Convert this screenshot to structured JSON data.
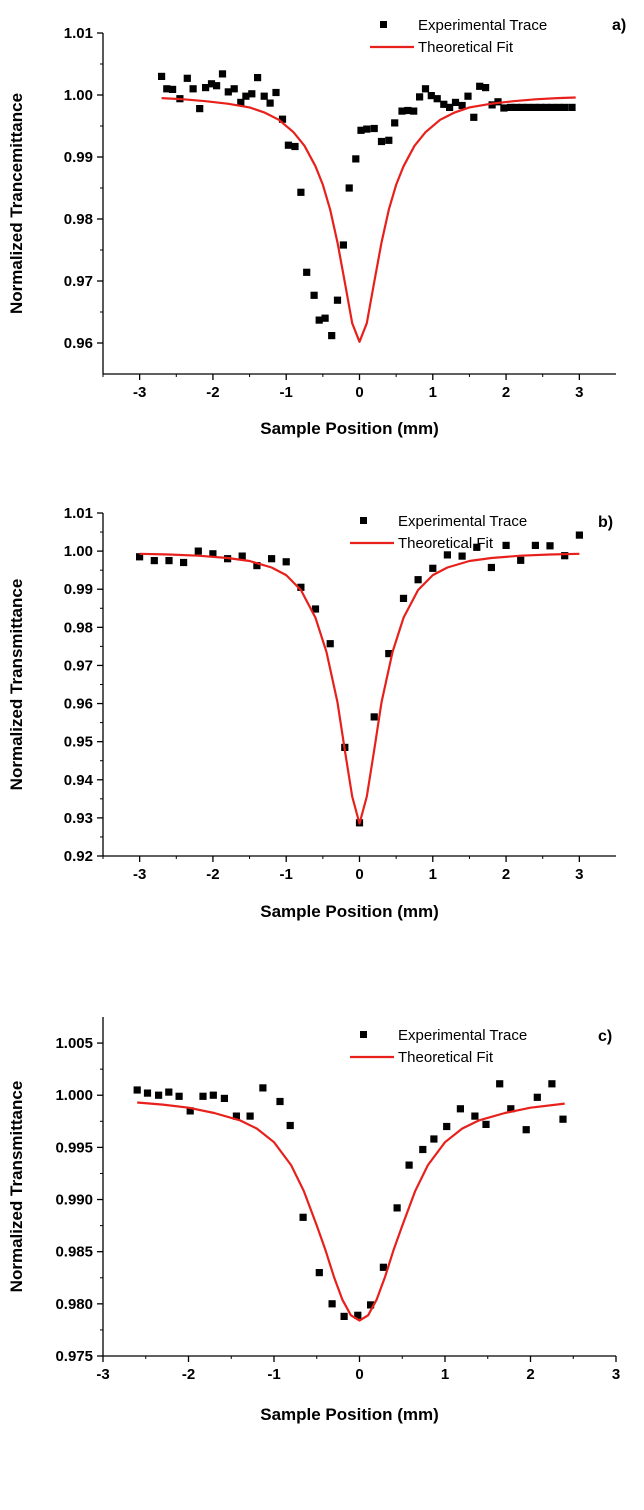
{
  "chart_data": [
    {
      "type": "scatter",
      "panel_label": "a)",
      "xlabel": "Sample Position (mm)",
      "ylabel": "Normalized Trancemittance",
      "xlim": [
        -3.5,
        3.5
      ],
      "ylim": [
        0.955,
        1.01
      ],
      "xticks": [
        -3,
        -2,
        -1,
        0,
        1,
        2,
        3
      ],
      "yticks": [
        0.96,
        0.97,
        0.98,
        0.99,
        1.0,
        1.01
      ],
      "ytick_labels": [
        "0.96",
        "0.97",
        "0.98",
        "0.99",
        "1.00",
        "1.01"
      ],
      "grid": false,
      "legend": "top-right",
      "series": [
        {
          "name": "Experimental Trace",
          "kind": "markers",
          "color": "#000000",
          "x": [
            -2.7,
            -2.63,
            -2.55,
            -2.45,
            -2.35,
            -2.27,
            -2.18,
            -2.1,
            -2.02,
            -1.95,
            -1.87,
            -1.79,
            -1.71,
            -1.62,
            -1.55,
            -1.47,
            -1.39,
            -1.3,
            -1.22,
            -1.14,
            -1.05,
            -0.97,
            -0.88,
            -0.8,
            -0.72,
            -0.62,
            -0.55,
            -0.47,
            -0.38,
            -0.3,
            -0.22,
            -0.14,
            -0.05,
            0.02,
            0.1,
            0.2,
            0.3,
            0.4,
            0.48,
            0.58,
            0.66,
            0.74,
            0.82,
            0.9,
            0.98,
            1.06,
            1.15,
            1.23,
            1.31,
            1.4,
            1.48,
            1.56,
            1.64,
            1.72,
            1.81,
            1.89,
            1.97,
            2.06,
            2.14,
            2.22,
            2.3,
            2.39,
            2.47,
            2.55,
            2.63,
            2.72,
            2.8,
            2.9
          ],
          "y": [
            1.003,
            1.001,
            1.0009,
            0.9994,
            1.0027,
            1.001,
            0.9978,
            1.0012,
            1.0018,
            1.0015,
            1.0034,
            1.0005,
            1.001,
            0.9988,
            0.9998,
            1.0002,
            1.0028,
            0.9998,
            0.9987,
            1.0004,
            0.9961,
            0.9919,
            0.9917,
            0.9843,
            0.9714,
            0.9677,
            0.9637,
            0.964,
            0.9612,
            0.9669,
            0.9758,
            0.985,
            0.9897,
            0.9943,
            0.9945,
            0.9946,
            0.9925,
            0.9927,
            0.9955,
            0.9974,
            0.9975,
            0.9974,
            0.9997,
            1.001,
            0.9999,
            0.9994,
            0.9985,
            0.998,
            0.9988,
            0.9983,
            0.9998,
            0.9964,
            1.0014,
            1.0012,
            0.9984,
            0.9989,
            0.9979,
            0.998,
            0.998,
            0.998,
            0.998,
            0.998,
            0.998,
            0.998,
            0.998,
            0.998,
            0.998,
            0.998
          ]
        },
        {
          "name": "Theoretical Fit",
          "kind": "line",
          "color": "#e8201c",
          "x": [
            -2.7,
            -2.4,
            -2.1,
            -1.8,
            -1.5,
            -1.3,
            -1.1,
            -0.9,
            -0.75,
            -0.6,
            -0.5,
            -0.4,
            -0.3,
            -0.2,
            -0.1,
            0,
            0.1,
            0.2,
            0.3,
            0.4,
            0.5,
            0.6,
            0.75,
            0.9,
            1.1,
            1.3,
            1.5,
            1.8,
            2.1,
            2.4,
            2.7,
            2.95
          ],
          "y": [
            0.9995,
            0.9993,
            0.999,
            0.9986,
            0.998,
            0.9972,
            0.996,
            0.994,
            0.9918,
            0.9885,
            0.9855,
            0.9815,
            0.9762,
            0.9698,
            0.9632,
            0.9602,
            0.9632,
            0.9698,
            0.9762,
            0.9815,
            0.9855,
            0.9885,
            0.9918,
            0.994,
            0.996,
            0.9972,
            0.998,
            0.9986,
            0.999,
            0.9993,
            0.9995,
            0.9996
          ]
        }
      ]
    },
    {
      "type": "scatter",
      "panel_label": "b)",
      "xlabel": "Sample Position (mm)",
      "ylabel": "Normalized Transmittance",
      "xlim": [
        -3.5,
        3.5
      ],
      "ylim": [
        0.92,
        1.01
      ],
      "xticks": [
        -3,
        -2,
        -1,
        0,
        1,
        2,
        3
      ],
      "yticks": [
        0.92,
        0.93,
        0.94,
        0.95,
        0.96,
        0.97,
        0.98,
        0.99,
        1.0,
        1.01
      ],
      "ytick_labels": [
        "0.92",
        "0.93",
        "0.94",
        "0.95",
        "0.96",
        "0.97",
        "0.98",
        "0.99",
        "1.00",
        "1.01"
      ],
      "grid": false,
      "legend": "top-right",
      "series": [
        {
          "name": "Experimental Trace",
          "kind": "markers",
          "color": "#000000",
          "x": [
            -3,
            -2.8,
            -2.6,
            -2.4,
            -2.2,
            -2,
            -1.8,
            -1.6,
            -1.4,
            -1.2,
            -1,
            -0.8,
            -0.6,
            -0.4,
            -0.2,
            0,
            0.2,
            0.4,
            0.6,
            0.8,
            1,
            1.2,
            1.4,
            1.6,
            1.8,
            2,
            2.2,
            2.4,
            2.6,
            2.8,
            3
          ],
          "y": [
            0.9985,
            0.9975,
            0.9975,
            0.997,
            1,
            0.9993,
            0.998,
            0.9987,
            0.9962,
            0.998,
            0.9972,
            0.9905,
            0.9848,
            0.9757,
            0.9485,
            0.9287,
            0.9565,
            0.9731,
            0.9876,
            0.9925,
            0.9955,
            0.999,
            0.9987,
            1.001,
            0.9957,
            1.0015,
            0.9976,
            1.0015,
            1.0014,
            0.9988,
            1.0042
          ]
        },
        {
          "name": "Theoretical Fit",
          "kind": "line",
          "color": "#e8201c",
          "x": [
            -3,
            -2.6,
            -2.2,
            -1.8,
            -1.5,
            -1.2,
            -1,
            -0.8,
            -0.6,
            -0.45,
            -0.3,
            -0.2,
            -0.1,
            0,
            0.1,
            0.2,
            0.3,
            0.45,
            0.6,
            0.8,
            1,
            1.2,
            1.5,
            1.8,
            2.2,
            2.6,
            3
          ],
          "y": [
            0.9993,
            0.9991,
            0.9988,
            0.9982,
            0.9974,
            0.9957,
            0.9937,
            0.9898,
            0.9825,
            0.9735,
            0.9603,
            0.9478,
            0.9356,
            0.9285,
            0.9356,
            0.9478,
            0.9603,
            0.9735,
            0.9825,
            0.9898,
            0.9937,
            0.9957,
            0.9974,
            0.9982,
            0.9988,
            0.9991,
            0.9993
          ]
        }
      ]
    },
    {
      "type": "scatter",
      "panel_label": "c)",
      "xlabel": "Sample Position (mm)",
      "ylabel": "Normalized Transmittance",
      "xlim": [
        -3,
        3
      ],
      "ylim": [
        0.975,
        1.0075
      ],
      "xticks": [
        -3,
        -2,
        -1,
        0,
        1,
        2,
        3
      ],
      "yticks": [
        0.975,
        0.98,
        0.985,
        0.99,
        0.995,
        1.0,
        1.005
      ],
      "ytick_labels": [
        "0.975",
        "0.980",
        "0.985",
        "0.990",
        "0.995",
        "1.000",
        "1.005"
      ],
      "grid": false,
      "legend": "top-right",
      "series": [
        {
          "name": "Experimental Trace",
          "kind": "markers",
          "color": "#000000",
          "x": [
            -2.6,
            -2.48,
            -2.35,
            -2.23,
            -2.11,
            -1.98,
            -1.83,
            -1.71,
            -1.58,
            -1.44,
            -1.28,
            -1.13,
            -0.93,
            -0.81,
            -0.66,
            -0.47,
            -0.32,
            -0.18,
            -0.02,
            0.13,
            0.28,
            0.44,
            0.58,
            0.74,
            0.87,
            1.02,
            1.18,
            1.35,
            1.48,
            1.64,
            1.77,
            1.95,
            2.08,
            2.25,
            2.38
          ],
          "y": [
            1.0005,
            1.0002,
            1.0,
            1.0003,
            0.9999,
            0.9985,
            0.9999,
            1.0,
            0.9997,
            0.998,
            0.998,
            1.0007,
            0.9994,
            0.9971,
            0.9883,
            0.983,
            0.98,
            0.9788,
            0.9789,
            0.9799,
            0.9835,
            0.9892,
            0.9933,
            0.9948,
            0.9958,
            0.997,
            0.9987,
            0.998,
            0.9972,
            1.0011,
            0.9987,
            0.9967,
            0.9998,
            1.0011,
            0.9977
          ]
        },
        {
          "name": "Theoretical Fit",
          "kind": "line",
          "color": "#e8201c",
          "x": [
            -2.6,
            -2.3,
            -2,
            -1.7,
            -1.4,
            -1.2,
            -1,
            -0.8,
            -0.65,
            -0.5,
            -0.4,
            -0.3,
            -0.2,
            -0.1,
            0,
            0.1,
            0.2,
            0.3,
            0.4,
            0.5,
            0.65,
            0.8,
            1,
            1.2,
            1.4,
            1.7,
            2,
            2.4
          ],
          "y": [
            0.9993,
            0.9991,
            0.9988,
            0.9983,
            0.9976,
            0.9968,
            0.9955,
            0.9933,
            0.9908,
            0.9875,
            0.9852,
            0.9826,
            0.9804,
            0.9789,
            0.9784,
            0.9789,
            0.9804,
            0.9826,
            0.9852,
            0.9875,
            0.9908,
            0.9933,
            0.9955,
            0.9968,
            0.9976,
            0.9983,
            0.9988,
            0.9992
          ]
        }
      ]
    }
  ]
}
